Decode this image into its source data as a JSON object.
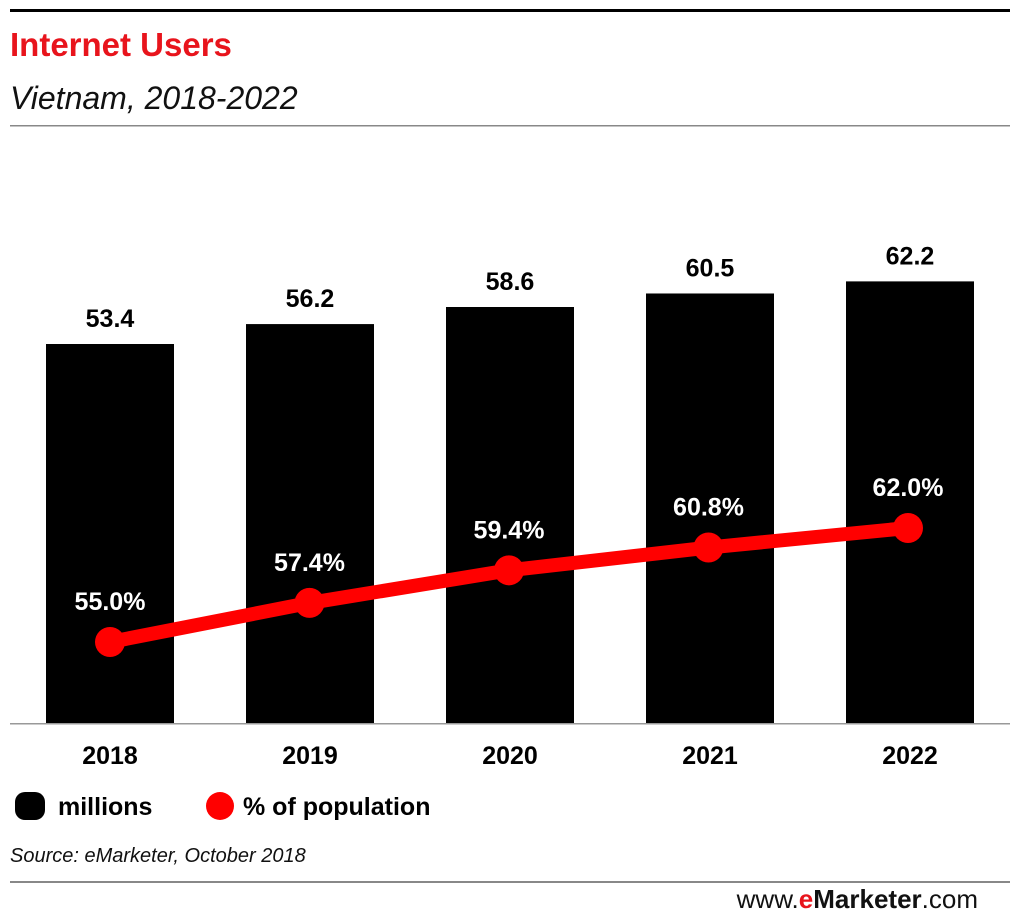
{
  "chart_data": {
    "type": "bar+line",
    "title": "Internet Users",
    "subtitle": "Vietnam, 2018-2022",
    "categories": [
      "2018",
      "2019",
      "2020",
      "2021",
      "2022"
    ],
    "series": [
      {
        "name": "millions",
        "type": "bar",
        "color": "#000000",
        "values": [
          53.4,
          56.2,
          58.6,
          60.5,
          62.2
        ],
        "labels": [
          "53.4",
          "56.2",
          "58.6",
          "60.5",
          "62.2"
        ]
      },
      {
        "name": "% of population",
        "type": "line",
        "color": "#ff0000",
        "values": [
          55.0,
          57.4,
          59.4,
          60.8,
          62.0
        ],
        "labels": [
          "55.0%",
          "57.4%",
          "59.4%",
          "60.8%",
          "62.0%"
        ]
      }
    ],
    "legend": "bottom-left",
    "grid": false,
    "source": "Source: eMarketer, October 2018"
  },
  "brand": {
    "prefix": "www.",
    "e": "e",
    "name": "Marketer",
    "suffix": ".com"
  },
  "colors": {
    "accent": "#e8141c"
  }
}
